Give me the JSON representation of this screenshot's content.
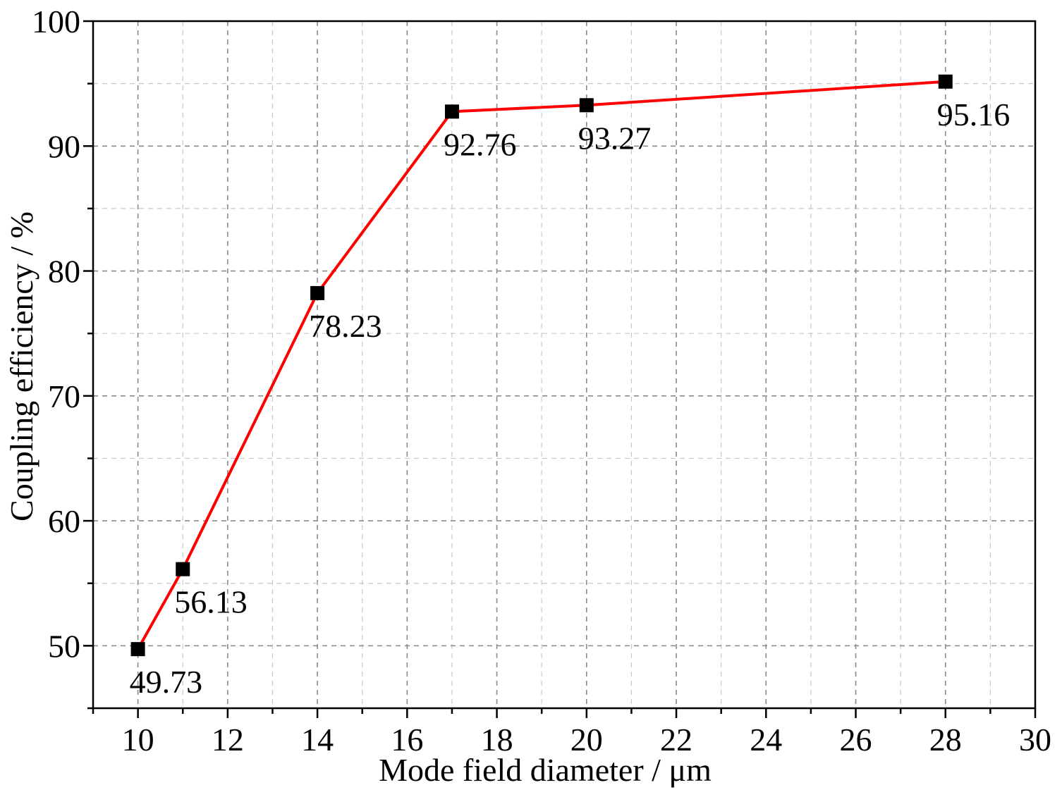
{
  "chart_data": {
    "type": "line",
    "xlabel": "Mode field diameter / μm",
    "ylabel": "Coupling efficiency / %",
    "xlim": [
      9,
      30
    ],
    "ylim": [
      45,
      100
    ],
    "x_ticks": [
      10,
      12,
      14,
      16,
      18,
      20,
      22,
      24,
      26,
      28,
      30
    ],
    "y_ticks": [
      50,
      60,
      70,
      80,
      90,
      100
    ],
    "grid": true,
    "series": [
      {
        "x": [
          10,
          11,
          14,
          17,
          20,
          28
        ],
        "values": [
          49.73,
          56.13,
          78.23,
          92.76,
          93.27,
          95.16
        ],
        "labels": [
          "49.73",
          "56.13",
          "78.23",
          "92.76",
          "93.27",
          "95.16"
        ],
        "line_color": "#ff0000",
        "marker": "square",
        "marker_color": "#000000"
      }
    ]
  }
}
